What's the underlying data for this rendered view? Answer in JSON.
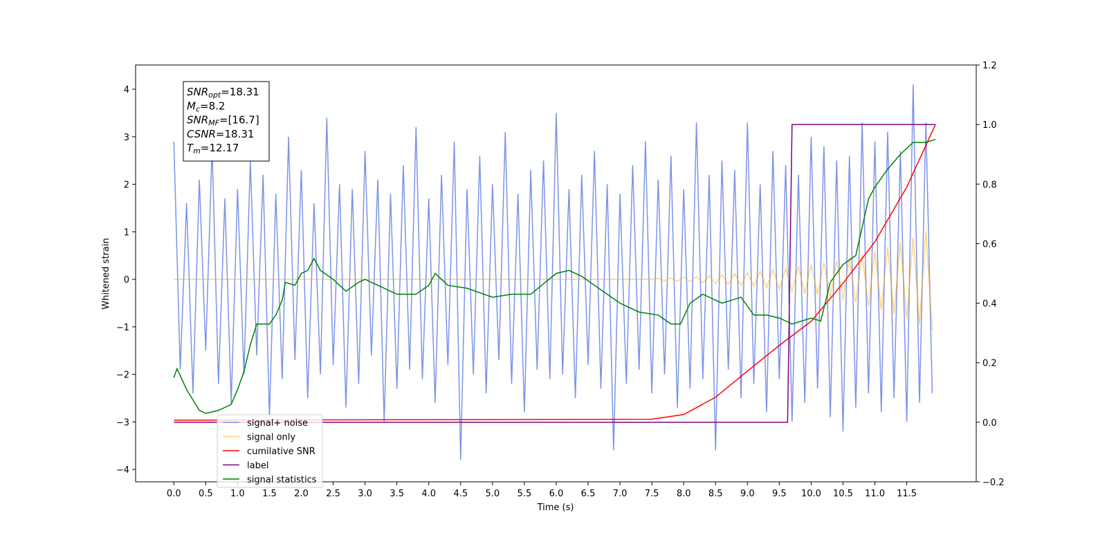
{
  "chart_data": {
    "type": "line",
    "xlabel": "Time (s)",
    "ylabel": "Whitened strain",
    "xlim": [
      -0.6,
      12.59
    ],
    "ylim": [
      -4.26,
      4.51
    ],
    "y2lim": [
      -0.2,
      1.2
    ],
    "xticks": [
      {
        "value": 0,
        "label": "0.0"
      },
      0.5,
      {
        "value": 1,
        "label": "1.0"
      },
      1.5,
      {
        "value": 2,
        "label": "2.0"
      },
      2.5,
      {
        "value": 3,
        "label": "3.0"
      },
      3.5,
      {
        "value": 4,
        "label": "4.0"
      },
      4.5,
      {
        "value": 5,
        "label": "5.0"
      },
      5.5,
      {
        "value": 6,
        "label": "6.0"
      },
      6.5,
      {
        "value": 7,
        "label": "7.0"
      },
      7.5,
      {
        "value": 8,
        "label": "8.0"
      },
      8.5,
      {
        "value": 9,
        "label": "9.0"
      },
      9.5,
      {
        "value": 10,
        "label": "10.0"
      },
      10.5,
      {
        "value": 11,
        "label": "11.0"
      },
      11.5
    ],
    "yticks": [
      {
        "value": -4,
        "label": "−4"
      },
      {
        "value": -3,
        "label": "−3"
      },
      {
        "value": -2,
        "label": "−2"
      },
      {
        "value": -1,
        "label": "−1"
      },
      0,
      1,
      2,
      3,
      4
    ],
    "y2ticks": [
      {
        "value": -0.2,
        "label": "−0.2"
      },
      {
        "value": 0,
        "label": "0.0"
      },
      0.2,
      0.4,
      0.6,
      0.8,
      {
        "value": 1,
        "label": "1.0"
      },
      1.2
    ],
    "legend": "lower left",
    "annotation": [
      {
        "symbol": "SNR",
        "sub": "opt",
        "text": "=18.31"
      },
      {
        "symbol": "M",
        "sub": "c",
        "text": "=8.2"
      },
      {
        "symbol": "SNR",
        "sub": "MF",
        "text": "=[16.7]"
      },
      {
        "symbol": "CSNR",
        "text": "=18.31"
      },
      {
        "symbol": "T",
        "sub": "m",
        "text": "=12.17"
      }
    ],
    "series": [
      {
        "name": "signal+ noise",
        "color": "#7b93e6",
        "x": [
          0,
          0.1,
          0.2,
          0.3,
          0.4,
          0.5,
          0.6,
          0.7,
          0.8,
          0.9,
          1,
          1.1,
          1.2,
          1.3,
          1.4,
          1.5,
          1.6,
          1.7,
          1.8,
          1.9,
          2,
          2.1,
          2.2,
          2.3,
          2.4,
          2.5,
          2.6,
          2.7,
          2.8,
          2.9,
          3,
          3.1,
          3.2,
          3.3,
          3.4,
          3.5,
          3.6,
          3.7,
          3.8,
          3.9,
          4,
          4.1,
          4.2,
          4.3,
          4.4,
          4.5,
          4.6,
          4.7,
          4.8,
          4.9,
          5,
          5.1,
          5.2,
          5.3,
          5.4,
          5.5,
          5.6,
          5.7,
          5.8,
          5.9,
          6,
          6.1,
          6.2,
          6.3,
          6.4,
          6.5,
          6.6,
          6.7,
          6.8,
          6.9,
          7,
          7.1,
          7.2,
          7.3,
          7.4,
          7.5,
          7.6,
          7.7,
          7.8,
          7.9,
          8,
          8.1,
          8.2,
          8.3,
          8.4,
          8.5,
          8.6,
          8.7,
          8.8,
          8.9,
          9,
          9.1,
          9.2,
          9.3,
          9.4,
          9.5,
          9.6,
          9.7,
          9.8,
          9.9,
          10,
          10.1,
          10.2,
          10.3,
          10.4,
          10.5,
          10.6,
          10.7,
          10.8,
          10.9,
          11,
          11.1,
          11.2,
          11.3,
          11.4,
          11.5,
          11.6,
          11.7,
          11.8,
          11.9
        ],
        "values": [
          2.9,
          -1.9,
          1.6,
          -2.4,
          2.1,
          -1.5,
          2.8,
          -2.2,
          1.7,
          -2.6,
          1.9,
          -2.0,
          2.5,
          -1.6,
          2.2,
          -2.9,
          1.8,
          -2.1,
          3.0,
          -1.7,
          2.3,
          -2.5,
          1.6,
          -2.0,
          3.4,
          -1.8,
          2.0,
          -2.7,
          1.9,
          -2.2,
          2.7,
          -1.6,
          2.1,
          -3.0,
          1.8,
          -2.3,
          2.4,
          -1.9,
          3.2,
          -2.1,
          1.7,
          -2.6,
          2.2,
          -1.8,
          2.9,
          -3.8,
          1.9,
          -2.0,
          2.6,
          -2.4,
          2.0,
          -1.7,
          3.1,
          -2.2,
          1.8,
          -2.8,
          2.3,
          -1.9,
          2.5,
          -2.1,
          3.5,
          -2.0,
          1.9,
          -2.5,
          2.2,
          -1.8,
          2.7,
          -2.3,
          2.0,
          -3.6,
          1.8,
          -2.2,
          2.4,
          -1.9,
          2.9,
          -2.4,
          2.1,
          -2.0,
          2.6,
          -2.7,
          1.9,
          -2.3,
          3.3,
          -2.1,
          2.2,
          -3.6,
          2.5,
          -1.9,
          2.3,
          -2.5,
          3.3,
          -2.2,
          2.0,
          -2.8,
          2.7,
          -2.1,
          2.4,
          -3.0,
          2.2,
          -2.6,
          3.0,
          -2.3,
          2.8,
          -2.9,
          2.5,
          -3.2,
          2.6,
          -2.7,
          3.3,
          -2.4,
          2.9,
          -2.8,
          3.1,
          -2.5,
          2.7,
          -3.0,
          4.1,
          -2.6,
          3.3,
          -2.4
        ]
      },
      {
        "name": "signal only",
        "color": "#ffa500",
        "x": [
          0,
          7.5,
          7.6,
          7.7,
          7.8,
          7.9,
          8,
          8.1,
          8.2,
          8.3,
          8.4,
          8.5,
          8.6,
          8.7,
          8.8,
          8.9,
          9,
          9.1,
          9.2,
          9.3,
          9.4,
          9.5,
          9.6,
          9.7,
          9.8,
          9.9,
          10,
          10.1,
          10.2,
          10.3,
          10.4,
          10.5,
          10.6,
          10.7,
          10.8,
          10.9,
          11,
          11.1,
          11.2,
          11.3,
          11.4,
          11.5,
          11.6,
          11.7,
          11.8,
          11.9
        ],
        "values": [
          0,
          0,
          0.02,
          -0.03,
          0.03,
          -0.04,
          0.05,
          -0.05,
          0.06,
          -0.07,
          0.08,
          -0.09,
          0.1,
          -0.11,
          0.12,
          -0.13,
          0.14,
          -0.15,
          0.17,
          -0.18,
          0.2,
          -0.21,
          0.23,
          -0.25,
          0.27,
          -0.29,
          0.31,
          -0.33,
          0.35,
          -0.38,
          0.4,
          -0.43,
          0.46,
          -0.49,
          0.52,
          -0.56,
          0.6,
          -0.64,
          0.68,
          -0.73,
          0.78,
          -0.83,
          0.88,
          -0.94,
          1.0,
          -1.08
        ]
      },
      {
        "name": "cumilative SNR",
        "color": "#ff0000",
        "axis": "y2",
        "x": [
          0,
          7.5,
          8,
          8.5,
          9,
          9.5,
          10,
          10.5,
          11,
          11.5,
          11.95
        ],
        "values": [
          0.007,
          0.01,
          0.026,
          0.084,
          0.172,
          0.258,
          0.339,
          0.467,
          0.606,
          0.79,
          1.0
        ]
      },
      {
        "name": "label",
        "color": "#800080",
        "axis": "y2",
        "x": [
          0,
          9.63,
          9.7,
          11.95
        ],
        "values": [
          0,
          0,
          1,
          1
        ]
      },
      {
        "name": "signal statistics",
        "color": "#008000",
        "axis": "y2",
        "x": [
          0,
          0.05,
          0.2,
          0.4,
          0.5,
          0.7,
          0.9,
          1.0,
          1.1,
          1.2,
          1.3,
          1.5,
          1.6,
          1.7,
          1.75,
          1.9,
          2.0,
          2.1,
          2.2,
          2.3,
          2.5,
          2.7,
          2.9,
          3.0,
          3.2,
          3.5,
          3.8,
          4.0,
          4.1,
          4.3,
          4.6,
          5.0,
          5.3,
          5.6,
          6.0,
          6.2,
          6.4,
          6.8,
          7.0,
          7.3,
          7.6,
          7.8,
          7.95,
          8.1,
          8.3,
          8.6,
          8.9,
          9.1,
          9.3,
          9.5,
          9.7,
          10.0,
          10.15,
          10.3,
          10.5,
          10.7,
          10.9,
          11.0,
          11.2,
          11.4,
          11.6,
          11.8,
          11.95
        ],
        "values": [
          0.15,
          0.18,
          0.11,
          0.04,
          0.03,
          0.04,
          0.06,
          0.11,
          0.17,
          0.26,
          0.33,
          0.33,
          0.36,
          0.41,
          0.47,
          0.46,
          0.5,
          0.51,
          0.55,
          0.51,
          0.48,
          0.44,
          0.47,
          0.48,
          0.46,
          0.43,
          0.43,
          0.46,
          0.5,
          0.46,
          0.45,
          0.42,
          0.43,
          0.43,
          0.5,
          0.51,
          0.49,
          0.43,
          0.4,
          0.37,
          0.36,
          0.33,
          0.33,
          0.4,
          0.43,
          0.4,
          0.42,
          0.36,
          0.36,
          0.35,
          0.33,
          0.35,
          0.34,
          0.47,
          0.53,
          0.56,
          0.75,
          0.79,
          0.85,
          0.9,
          0.94,
          0.94,
          0.95
        ]
      }
    ]
  }
}
